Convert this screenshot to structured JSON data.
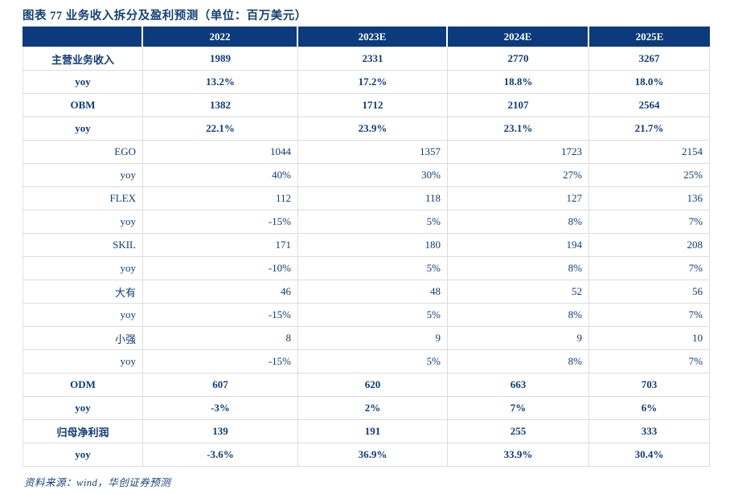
{
  "title": "图表 77  业务收入拆分及盈利预测（单位：百万美元）",
  "source": "资料来源：wind，华创证券预测",
  "colors": {
    "header_bg": "#0C3B7D",
    "body_text": "#0F3C7C",
    "title_text": "#14427C",
    "grid_line": "#DCDCDC"
  },
  "table": {
    "columns": [
      "",
      "2022",
      "2023E",
      "2024E",
      "2025E"
    ],
    "rows": [
      {
        "label": "主营业务收入",
        "values": [
          "1989",
          "2331",
          "2770",
          "3267"
        ],
        "style": "bold-center"
      },
      {
        "label": "yoy",
        "values": [
          "13.2%",
          "17.2%",
          "18.8%",
          "18.0%"
        ],
        "style": "bold-center"
      },
      {
        "label": "OBM",
        "values": [
          "1382",
          "1712",
          "2107",
          "2564"
        ],
        "style": "bold-center"
      },
      {
        "label": "yoy",
        "values": [
          "22.1%",
          "23.9%",
          "23.1%",
          "21.7%"
        ],
        "style": "bold-center"
      },
      {
        "label": "EGO",
        "values": [
          "1044",
          "1357",
          "1723",
          "2154"
        ],
        "style": "right"
      },
      {
        "label": "yoy",
        "values": [
          "40%",
          "30%",
          "27%",
          "25%"
        ],
        "style": "right"
      },
      {
        "label": "FLEX",
        "values": [
          "112",
          "118",
          "127",
          "136"
        ],
        "style": "right"
      },
      {
        "label": "yoy",
        "values": [
          "-15%",
          "5%",
          "8%",
          "7%"
        ],
        "style": "right"
      },
      {
        "label": "SKIL",
        "values": [
          "171",
          "180",
          "194",
          "208"
        ],
        "style": "right"
      },
      {
        "label": "yoy",
        "values": [
          "-10%",
          "5%",
          "8%",
          "7%"
        ],
        "style": "right"
      },
      {
        "label": "大有",
        "values": [
          "46",
          "48",
          "52",
          "56"
        ],
        "style": "right"
      },
      {
        "label": "yoy",
        "values": [
          "-15%",
          "5%",
          "8%",
          "7%"
        ],
        "style": "right"
      },
      {
        "label": "小强",
        "values": [
          "8",
          "9",
          "9",
          "10"
        ],
        "style": "right"
      },
      {
        "label": "yoy",
        "values": [
          "-15%",
          "5%",
          "8%",
          "7%"
        ],
        "style": "right"
      },
      {
        "label": "ODM",
        "values": [
          "607",
          "620",
          "663",
          "703"
        ],
        "style": "bold-center"
      },
      {
        "label": "yoy",
        "values": [
          "-3%",
          "2%",
          "7%",
          "6%"
        ],
        "style": "bold-center"
      },
      {
        "label": "归母净利润",
        "values": [
          "139",
          "191",
          "255",
          "333"
        ],
        "style": "bold-center"
      },
      {
        "label": "yoy",
        "values": [
          "-3.6%",
          "36.9%",
          "33.9%",
          "30.4%"
        ],
        "style": "bold-center"
      }
    ]
  }
}
